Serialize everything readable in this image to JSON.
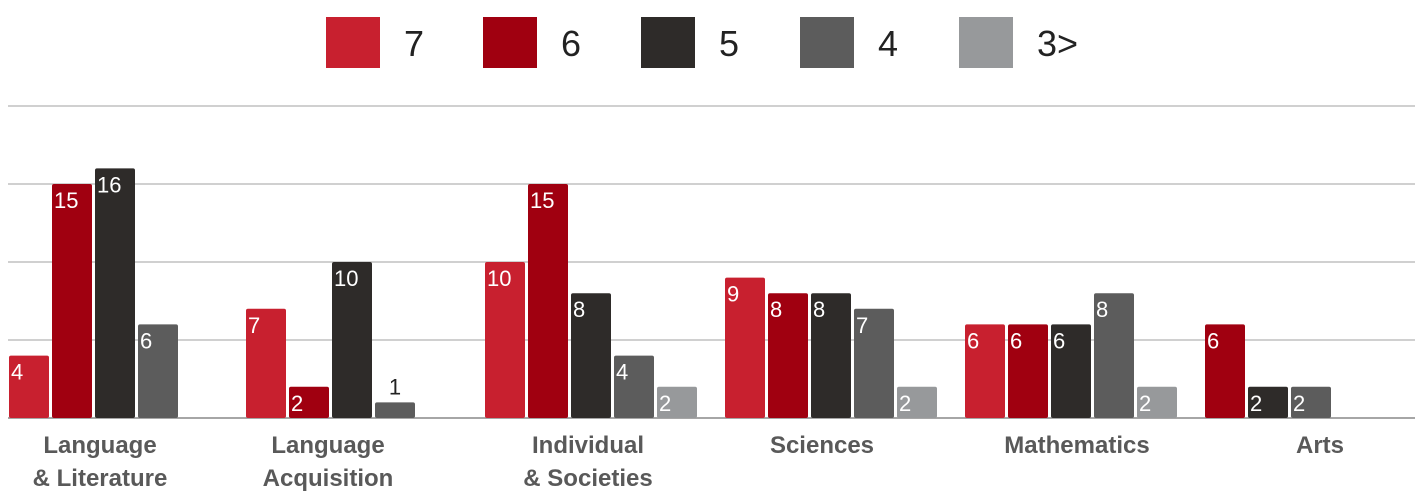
{
  "chart_data": {
    "type": "bar",
    "categories": [
      [
        "Language",
        "& Literature"
      ],
      [
        "Language",
        "Acquisition"
      ],
      [
        "Individual",
        "& Societies"
      ],
      [
        "Sciences"
      ],
      [
        "Mathematics"
      ],
      [
        "Arts"
      ]
    ],
    "series": [
      {
        "name": "7",
        "color": "#c8202f",
        "values": [
          4,
          7,
          10,
          9,
          6,
          0
        ]
      },
      {
        "name": "6",
        "color": "#a00010",
        "values": [
          15,
          2,
          15,
          8,
          6,
          6
        ]
      },
      {
        "name": "5",
        "color": "#2e2b29",
        "values": [
          16,
          10,
          8,
          8,
          6,
          2
        ]
      },
      {
        "name": "4",
        "color": "#5c5c5c",
        "values": [
          6,
          1,
          4,
          7,
          8,
          2
        ]
      },
      {
        "name": "3>",
        "color": "#97999b",
        "values": [
          0,
          0,
          2,
          2,
          2,
          0
        ]
      }
    ],
    "ylim": [
      0,
      20
    ],
    "grid": true,
    "legend_position": "top-center",
    "title": "",
    "xlabel": "",
    "ylabel": ""
  }
}
